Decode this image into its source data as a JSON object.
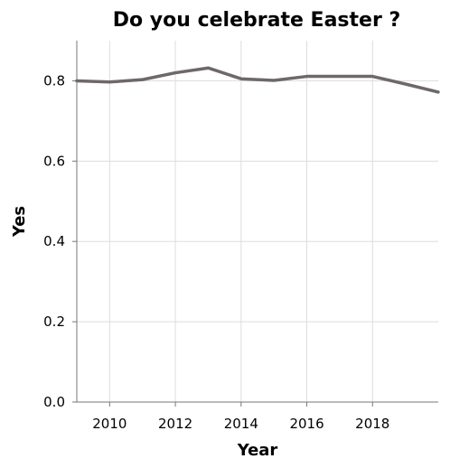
{
  "chart_data": {
    "type": "line",
    "title": "Do you celebrate Easter ?",
    "xlabel": "Year",
    "ylabel": "Yes",
    "xlim": [
      2009,
      2020
    ],
    "ylim": [
      0,
      0.9
    ],
    "x_ticks": [
      2010,
      2012,
      2014,
      2016,
      2018
    ],
    "y_ticks": [
      0.0,
      0.2,
      0.4,
      0.6,
      0.8
    ],
    "y_tick_labels": [
      "0.0",
      "0.2",
      "0.4",
      "0.6",
      "0.8"
    ],
    "grid": true,
    "legend": "none",
    "series": [
      {
        "color": "#6f6868",
        "x": [
          2009,
          2010,
          2011,
          2012,
          2013,
          2014,
          2015,
          2016,
          2017,
          2018,
          2019,
          2020
        ],
        "values": [
          0.8,
          0.797,
          0.803,
          0.82,
          0.832,
          0.805,
          0.801,
          0.811,
          0.811,
          0.811,
          0.792,
          0.772
        ]
      }
    ]
  }
}
